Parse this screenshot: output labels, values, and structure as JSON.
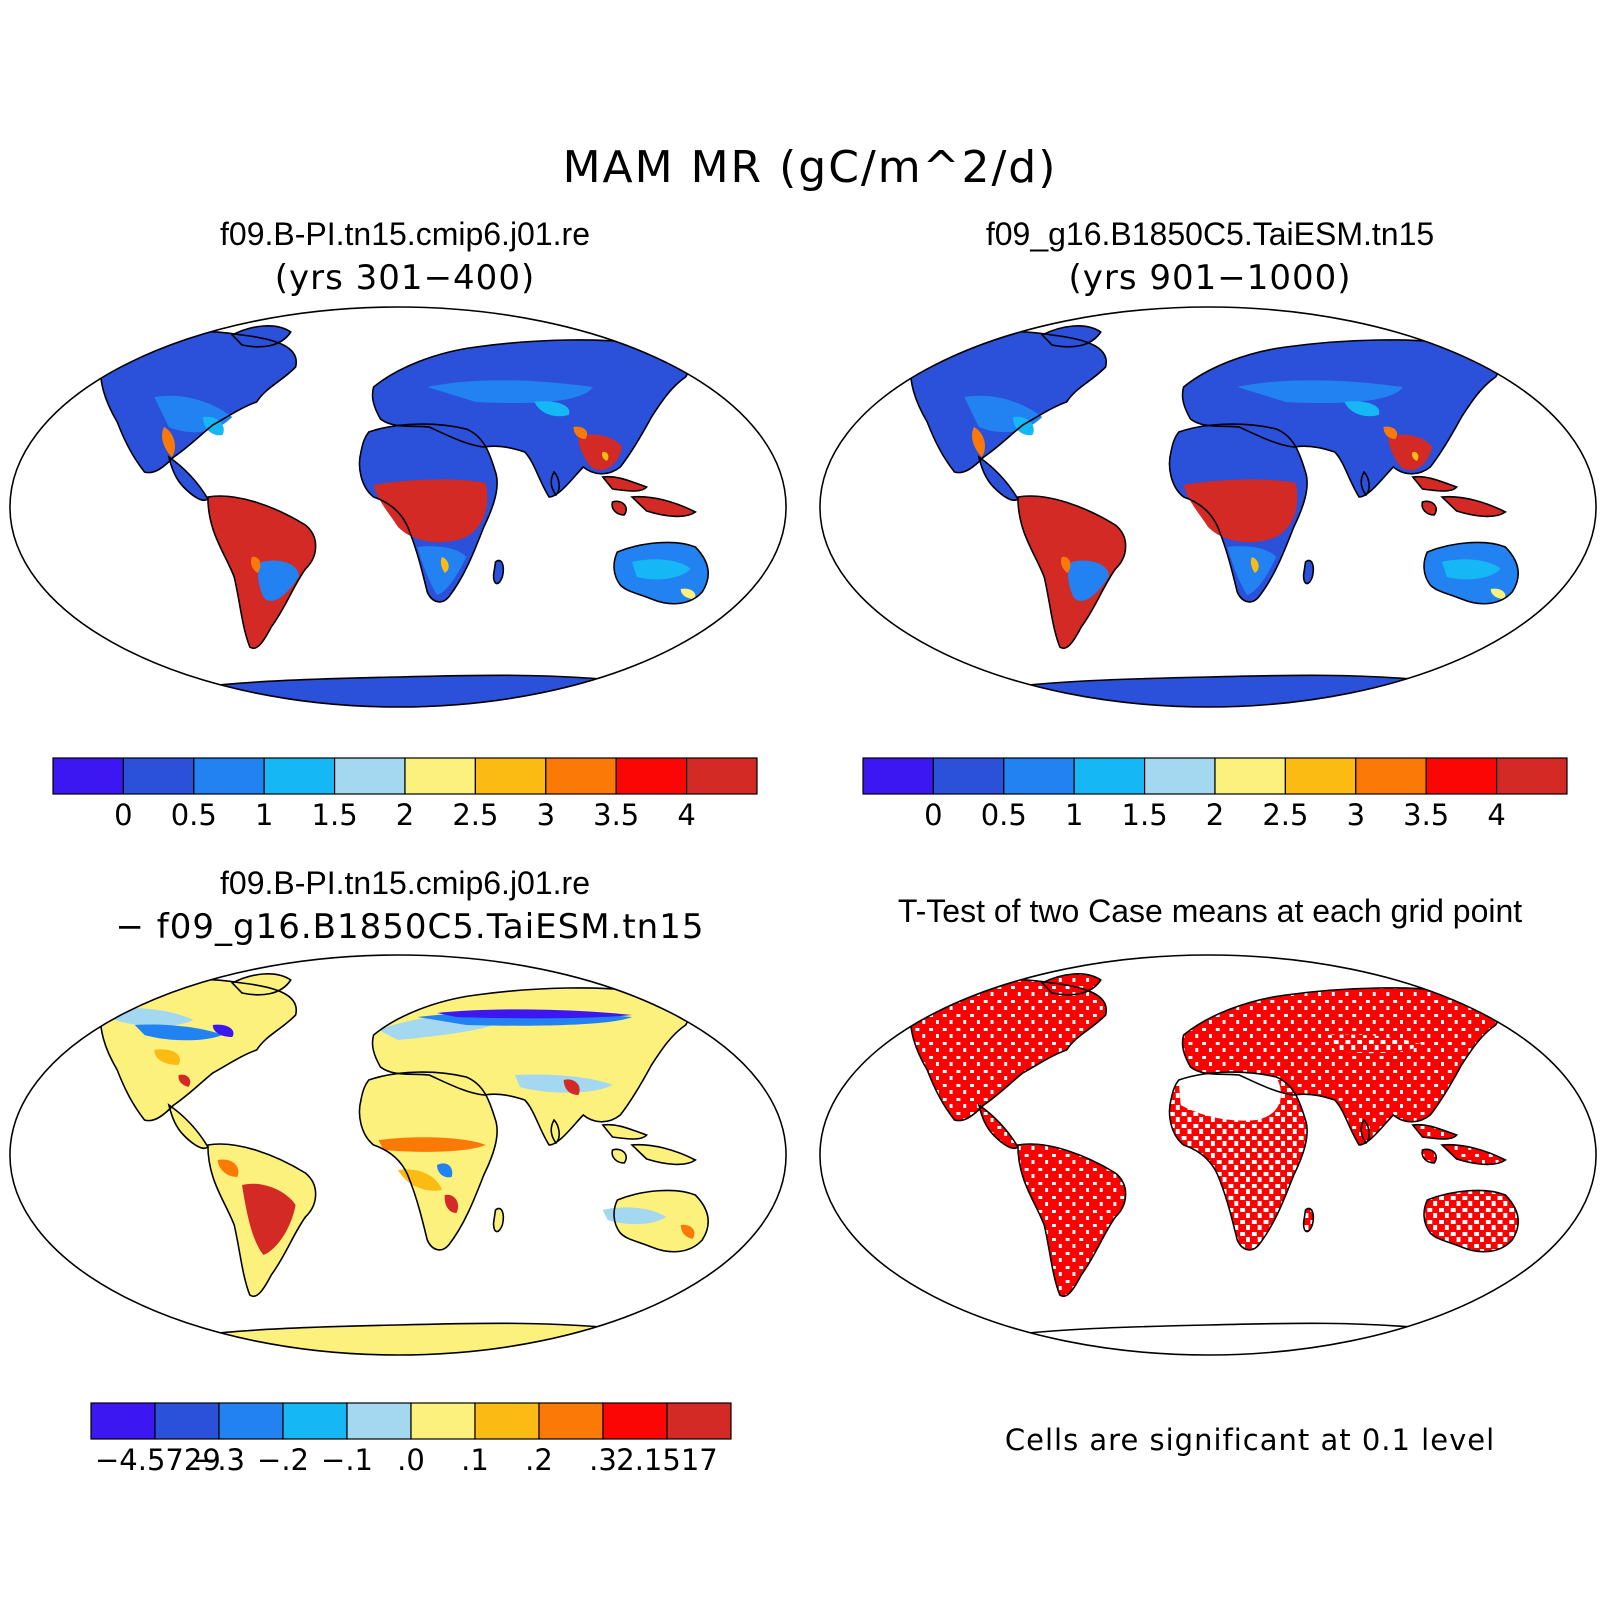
{
  "title": "MAM MR (gC/m^2/d)",
  "panels": {
    "top_left": {
      "title": "f09.B-PI.tn15.cmip6.j01.re",
      "subtitle": "(yrs 301−400)"
    },
    "top_right": {
      "title": "f09_g16.B1850C5.TaiESM.tn15",
      "subtitle": "(yrs 901−1000)"
    },
    "bottom_left": {
      "title": "f09.B-PI.tn15.cmip6.j01.re",
      "subtitle": "− f09_g16.B1850C5.TaiESM.tn15"
    },
    "bottom_right": {
      "title": "T-Test of two Case means at each grid point",
      "note": "Cells are significant at 0.1 level"
    }
  },
  "colorbars": {
    "case": {
      "colors": [
        "#3d17f2",
        "#2b50d9",
        "#2382f2",
        "#15b8f5",
        "#a4d8f1",
        "#fdf17e",
        "#fbbb12",
        "#fb7a07",
        "#fc0505",
        "#d32a26"
      ],
      "labels": [
        "0",
        "0.5",
        "1",
        "1.5",
        "2",
        "2.5",
        "3",
        "3.5",
        "4"
      ]
    },
    "diff": {
      "colors": [
        "#3d17f2",
        "#2b50d9",
        "#2382f2",
        "#15b8f5",
        "#a4d8f1",
        "#fdf17e",
        "#fbbb12",
        "#fb7a07",
        "#fc0505",
        "#d32a26"
      ],
      "labels": [
        "−4.5729",
        "−.3",
        "−.2",
        "−.1",
        ".0",
        ".1",
        ".2",
        ".3",
        "2.1517"
      ]
    }
  },
  "colors": {
    "low": "#2b50d9",
    "mid_low": "#2382f2",
    "light": "#15b8f5",
    "pale": "#a4d8f1",
    "yellow": "#fdf17e",
    "orange": "#fb7a07",
    "red": "#fc0505",
    "dark_red": "#d32a26",
    "significant": "#ff0000"
  }
}
